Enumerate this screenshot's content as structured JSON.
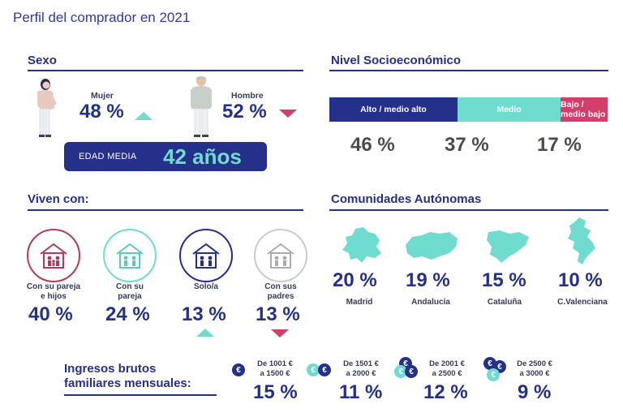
{
  "title": "Perfil del comprador  en 2021",
  "colors": {
    "navy": "#25308a",
    "teal": "#6fdccf",
    "red": "#d33f6a"
  },
  "sexo": {
    "title": "Sexo",
    "mujer": {
      "label": "Mujer",
      "pct": "48 %",
      "trend": "up"
    },
    "hombre": {
      "label": "Hombre",
      "pct": "52 %",
      "trend": "down"
    },
    "edad_label": "EDAD MEDIA",
    "edad_value": "42 años"
  },
  "nivel": {
    "title": "Nivel Socioeconómico",
    "segments": [
      {
        "label": "Alto / medio alto",
        "pct": "46 %",
        "share": 46
      },
      {
        "label": "Medio",
        "pct": "37 %",
        "share": 37
      },
      {
        "label": "Bajo / medio bajo",
        "pct": "17 %",
        "share": 17
      }
    ]
  },
  "viven": {
    "title": "Viven con:",
    "items": [
      {
        "label1": "Con su pareja",
        "label2": "e hijos",
        "pct": "40 %",
        "icon": "family-house-icon"
      },
      {
        "label1": "Con su",
        "label2": "pareja",
        "pct": "24 %",
        "icon": "couple-house-icon"
      },
      {
        "label1": "Solo/a",
        "label2": "",
        "pct": "13 %",
        "icon": "single-house-icon",
        "trend": "up"
      },
      {
        "label1": "Con sus",
        "label2": "padres",
        "pct": "13 %",
        "icon": "parents-house-icon",
        "trend": "down"
      }
    ]
  },
  "comunidades": {
    "title": "Comunidades Autónomas",
    "items": [
      {
        "name": "Madrid",
        "pct": "20 %"
      },
      {
        "name": "Andalucía",
        "pct": "19 %"
      },
      {
        "name": "Cataluña",
        "pct": "15 %"
      },
      {
        "name": "C.Valenciana",
        "pct": "10 %"
      }
    ]
  },
  "ingresos": {
    "title1": "Ingresos brutos",
    "title2": "familiares mensuales:",
    "items": [
      {
        "range1": "De 1001 €",
        "range2": "a 1500 €",
        "pct": "15 %"
      },
      {
        "range1": "De 1501 €",
        "range2": "a 2000 €",
        "pct": "11 %"
      },
      {
        "range1": "De 2001 €",
        "range2": "a 2500 €",
        "pct": "12 %"
      },
      {
        "range1": "De 2500 €",
        "range2": "a 3000 €",
        "pct": "9 %"
      }
    ]
  }
}
